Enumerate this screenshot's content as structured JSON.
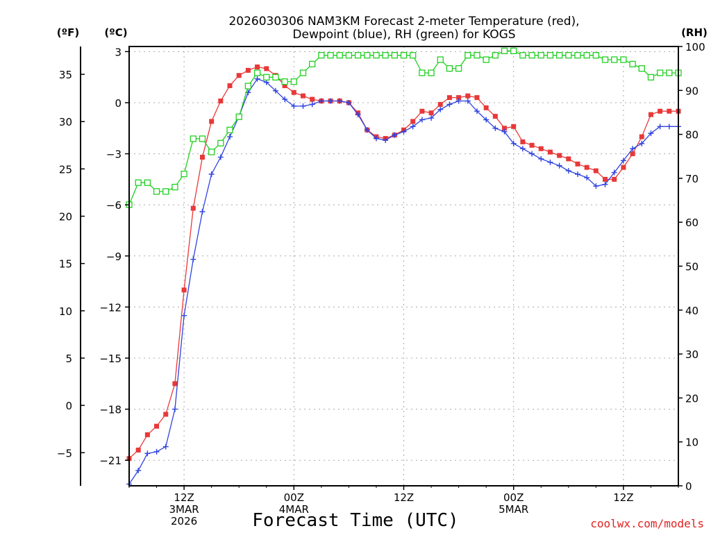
{
  "chart_data": {
    "type": "line",
    "title_line1": "2026030306 NAM3KM Forecast 2-meter Temperature (red),",
    "title_line2": "Dewpoint (blue), RH (green) for KOGS",
    "xlabel": "Forecast Time (UTC)",
    "credit": "coolwx.com/models",
    "axes": {
      "fahrenheit": {
        "unit_label": "(ºF)",
        "ticks": [
          -5,
          0,
          5,
          10,
          15,
          20,
          25,
          30,
          35
        ]
      },
      "celsius": {
        "unit_label": "(ºC)",
        "ylim": [
          -22.5,
          3.3
        ],
        "ticks": [
          -21,
          -18,
          -15,
          -12,
          -9,
          -6,
          -3,
          0,
          3
        ],
        "tick_labels": [
          "−21",
          "−18",
          "−15",
          "−12",
          "−9",
          "−6",
          "−3",
          "0",
          "3"
        ]
      },
      "rh": {
        "unit_label": "(RH)",
        "ylim": [
          0,
          100
        ],
        "ticks": [
          0,
          10,
          20,
          30,
          40,
          50,
          60,
          70,
          80,
          90,
          100
        ]
      },
      "x": {
        "unit": "forecast hour",
        "xlim": [
          0,
          60
        ],
        "ticks": [
          {
            "hour": 6,
            "lines": [
              "12Z",
              "3MAR",
              "2026"
            ]
          },
          {
            "hour": 18,
            "lines": [
              "00Z",
              "4MAR"
            ]
          },
          {
            "hour": 30,
            "lines": [
              "12Z"
            ]
          },
          {
            "hour": 42,
            "lines": [
              "00Z",
              "5MAR"
            ]
          },
          {
            "hour": 54,
            "lines": [
              "12Z"
            ]
          }
        ]
      }
    },
    "hours": [
      0,
      1,
      2,
      3,
      4,
      5,
      6,
      7,
      8,
      9,
      10,
      11,
      12,
      13,
      14,
      15,
      16,
      17,
      18,
      19,
      20,
      21,
      22,
      23,
      24,
      25,
      26,
      27,
      28,
      29,
      30,
      31,
      32,
      33,
      34,
      35,
      36,
      37,
      38,
      39,
      40,
      41,
      42,
      43,
      44,
      45,
      46,
      47,
      48,
      49,
      50,
      51,
      52,
      53,
      54,
      55,
      56,
      57,
      58,
      59,
      60
    ],
    "series": [
      {
        "name": "2-meter Temperature",
        "unit": "C",
        "color": "#e83838",
        "marker": "filled-square",
        "values": [
          -20.9,
          -20.4,
          -19.5,
          -19.0,
          -18.3,
          -16.5,
          -11.0,
          -6.2,
          -3.2,
          -1.1,
          0.1,
          1.0,
          1.6,
          1.9,
          2.1,
          2.0,
          1.6,
          1.0,
          0.6,
          0.4,
          0.2,
          0.1,
          0.1,
          0.1,
          0.0,
          -0.6,
          -1.6,
          -2.0,
          -2.1,
          -1.9,
          -1.6,
          -1.1,
          -0.5,
          -0.6,
          -0.1,
          0.3,
          0.3,
          0.4,
          0.3,
          -0.3,
          -0.8,
          -1.5,
          -1.4,
          -2.3,
          -2.5,
          -2.7,
          -2.9,
          -3.1,
          -3.3,
          -3.6,
          -3.8,
          -4.0,
          -4.5,
          -4.5,
          -3.8,
          -3.0,
          -2.0,
          -0.7,
          -0.5,
          -0.5,
          -0.5
        ]
      },
      {
        "name": "Dewpoint",
        "unit": "C",
        "color": "#2e42e0",
        "marker": "plus",
        "values": [
          -22.4,
          -21.6,
          -20.6,
          -20.5,
          -20.2,
          -18.0,
          -12.5,
          -9.2,
          -6.4,
          -4.2,
          -3.2,
          -2.0,
          -0.8,
          0.6,
          1.4,
          1.2,
          0.7,
          0.2,
          -0.2,
          -0.2,
          -0.1,
          0.1,
          0.1,
          0.1,
          0.0,
          -0.7,
          -1.6,
          -2.1,
          -2.2,
          -1.9,
          -1.7,
          -1.4,
          -1.0,
          -0.9,
          -0.4,
          -0.1,
          0.1,
          0.1,
          -0.5,
          -1.0,
          -1.5,
          -1.7,
          -2.4,
          -2.7,
          -3.0,
          -3.3,
          -3.5,
          -3.7,
          -4.0,
          -4.2,
          -4.4,
          -4.9,
          -4.8,
          -4.1,
          -3.4,
          -2.7,
          -2.4,
          -1.8,
          -1.4,
          -1.4,
          -1.4
        ]
      },
      {
        "name": "RH",
        "unit": "%",
        "color": "#20d020",
        "marker": "open-square",
        "values": [
          64,
          69,
          69,
          67,
          67,
          68,
          71,
          79,
          79,
          76,
          78,
          81,
          84,
          91,
          94,
          93,
          93,
          92,
          92,
          94,
          96,
          98,
          98,
          98,
          98,
          98,
          98,
          98,
          98,
          98,
          98,
          98,
          94,
          94,
          97,
          95,
          95,
          98,
          98,
          97,
          98,
          99,
          99,
          98,
          98,
          98,
          98,
          98,
          98,
          98,
          98,
          98,
          97,
          97,
          97,
          96,
          95,
          93,
          94,
          94,
          94
        ]
      }
    ]
  }
}
